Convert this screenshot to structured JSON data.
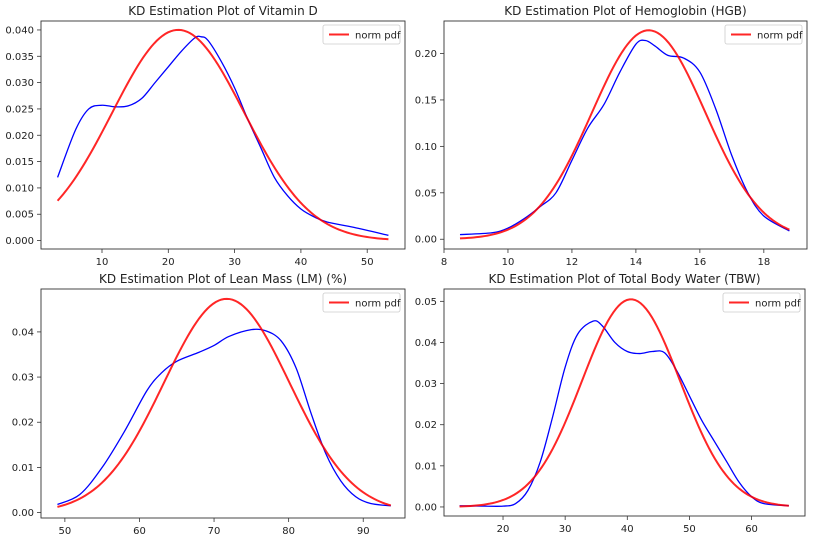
{
  "chart_data": [
    {
      "type": "line",
      "title": "KD Estimation Plot of Vitamin D",
      "xlim": [
        0.8,
        55.7
      ],
      "ylim": [
        -0.0016,
        0.0417
      ],
      "xticks": [
        10,
        20,
        30,
        40,
        50
      ],
      "yticks": [
        0.0,
        0.005,
        0.01,
        0.015,
        0.02,
        0.025,
        0.03,
        0.035,
        0.04
      ],
      "ytick_decimals": 3,
      "legend": {
        "label": "norm pdf",
        "placement": "upper right"
      },
      "grid": false,
      "kde": {
        "color": "#0000ff",
        "x": [
          3.3,
          6,
          8,
          10,
          12,
          14,
          16,
          18,
          20,
          22,
          24,
          25,
          26,
          28,
          30,
          32,
          34,
          36,
          38,
          40,
          42,
          44,
          48,
          53.2
        ],
        "y": [
          0.012,
          0.021,
          0.025,
          0.0257,
          0.0254,
          0.0256,
          0.027,
          0.03,
          0.033,
          0.036,
          0.0385,
          0.0387,
          0.038,
          0.034,
          0.029,
          0.023,
          0.0175,
          0.012,
          0.0085,
          0.006,
          0.0045,
          0.0035,
          0.0025,
          0.001
        ]
      },
      "norm_pdf": {
        "color": "#ff0000",
        "mean": 21.5,
        "std": 9.97,
        "x_range": [
          3.3,
          53.2
        ]
      }
    },
    {
      "type": "line",
      "title": "KD Estimation Plot of Hemoglobin (HGB)",
      "xlim": [
        8,
        19.35
      ],
      "ylim": [
        -0.0105,
        0.235
      ],
      "xticks": [
        8,
        10,
        12,
        14,
        16,
        18
      ],
      "yticks": [
        0.0,
        0.05,
        0.1,
        0.15,
        0.2
      ],
      "ytick_decimals": 2,
      "legend": {
        "label": "norm pdf",
        "placement": "upper right"
      },
      "grid": false,
      "kde": {
        "color": "#0000ff",
        "x": [
          8.5,
          9.5,
          10,
          10.5,
          11,
          11.5,
          12,
          12.5,
          13,
          13.5,
          14,
          14.3,
          14.6,
          15,
          15.5,
          16,
          16.5,
          17,
          17.5,
          18,
          18.8
        ],
        "y": [
          0.005,
          0.007,
          0.012,
          0.022,
          0.035,
          0.05,
          0.085,
          0.12,
          0.145,
          0.18,
          0.21,
          0.214,
          0.208,
          0.198,
          0.195,
          0.18,
          0.14,
          0.09,
          0.05,
          0.025,
          0.009
        ]
      },
      "norm_pdf": {
        "color": "#ff0000",
        "mean": 14.4,
        "std": 1.773,
        "x_range": [
          8.5,
          18.8
        ]
      }
    },
    {
      "type": "line",
      "title": "KD Estimation Plot of Lean Mass (LM) (%)",
      "xlim": [
        46.8,
        95.6
      ],
      "ylim": [
        -0.0012,
        0.0495
      ],
      "xticks": [
        50,
        60,
        70,
        80,
        90
      ],
      "yticks": [
        0.0,
        0.01,
        0.02,
        0.03,
        0.04
      ],
      "ytick_decimals": 2,
      "legend": {
        "label": "norm pdf",
        "placement": "upper right"
      },
      "grid": false,
      "kde": {
        "color": "#0000ff",
        "x": [
          49,
          52,
          55,
          58,
          61,
          63,
          65,
          68,
          70,
          72,
          75,
          77,
          79,
          81,
          83,
          85,
          87,
          89,
          91,
          93.7
        ],
        "y": [
          0.0018,
          0.004,
          0.01,
          0.018,
          0.027,
          0.031,
          0.0335,
          0.0355,
          0.037,
          0.039,
          0.0405,
          0.0402,
          0.038,
          0.032,
          0.022,
          0.013,
          0.007,
          0.0035,
          0.002,
          0.0015
        ]
      },
      "norm_pdf": {
        "color": "#ff0000",
        "mean": 71.7,
        "std": 8.43,
        "x_range": [
          49,
          93.7
        ]
      }
    },
    {
      "type": "line",
      "title": "KD Estimation Plot of Total Body Water (TBW)",
      "xlim": [
        10.5,
        68.6
      ],
      "ylim": [
        -0.0022,
        0.053
      ],
      "xticks": [
        20,
        30,
        40,
        50,
        60
      ],
      "yticks": [
        0.0,
        0.01,
        0.02,
        0.03,
        0.04,
        0.05
      ],
      "ytick_decimals": 2,
      "legend": {
        "label": "norm pdf",
        "placement": "upper right"
      },
      "grid": false,
      "kde": {
        "color": "#0000ff",
        "x": [
          13,
          17,
          20,
          22,
          24,
          26,
          28,
          30,
          32,
          34.5,
          36,
          38,
          40,
          42,
          44,
          46,
          48,
          50,
          52,
          54,
          56,
          58,
          60,
          62,
          66
        ],
        "y": [
          0.0003,
          0.0002,
          0.0002,
          0.0008,
          0.004,
          0.011,
          0.022,
          0.034,
          0.042,
          0.0452,
          0.044,
          0.04,
          0.0378,
          0.0373,
          0.0378,
          0.0375,
          0.033,
          0.027,
          0.021,
          0.016,
          0.011,
          0.006,
          0.0025,
          0.0008,
          0.0003
        ]
      },
      "norm_pdf": {
        "color": "#ff0000",
        "mean": 40.6,
        "std": 7.9,
        "x_range": [
          13,
          66
        ]
      }
    }
  ]
}
